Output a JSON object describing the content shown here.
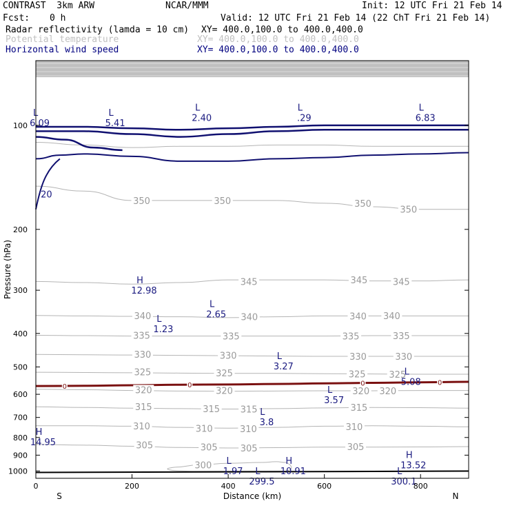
{
  "header": {
    "model": "CONTRAST  3km ARW",
    "org": "NCAR/MMM",
    "init": "Init: 12 UTC Fri 21 Feb 14",
    "fcst_label": "Fcst:",
    "fcst_value": "0 h",
    "valid": "Valid: 12 UTC Fri 21 Feb 14 (22 ChT Fri 21 Feb 14)",
    "fields": [
      {
        "name": "Radar reflectivity (lamda = 10 cm)",
        "xy": "XY= 400.0,100.0 to 400.0,400.0"
      },
      {
        "name": "Potential temperature",
        "xy": "XY= 400.0,100.0 to 400.0,400.0"
      },
      {
        "name": "Horizontal wind speed",
        "xy": "XY= 400.0,100.0 to 400.0,400.0"
      }
    ]
  },
  "colors": {
    "theta": "#b4b4b4",
    "wind": "#101070",
    "freezing": "#7a1010",
    "ground": "#000000",
    "upper_shade": "#c0c0c0"
  },
  "chart_data": {
    "type": "line",
    "title": "",
    "xlabel": "Distance (km)",
    "ylabel": "Pressure (hPa)",
    "xlim": [
      0,
      900
    ],
    "ylim": [
      1050,
      65
    ],
    "y_scale": "log",
    "x_ticks": [
      0,
      200,
      400,
      600,
      800
    ],
    "y_ticks": [
      100,
      200,
      300,
      400,
      500,
      600,
      700,
      800,
      900,
      1000
    ],
    "end_labels": {
      "left": "S",
      "right": "N"
    },
    "potential_temperature": [
      {
        "label": "300",
        "x": [
          290,
          340,
          400,
          470,
          500,
          520
        ],
        "y": [
          975,
          960,
          950,
          945,
          940,
          945
        ]
      },
      {
        "label": "305",
        "x": [
          0,
          100,
          200,
          300,
          400,
          500,
          600,
          700,
          800,
          900
        ],
        "y": [
          838,
          842,
          848,
          855,
          858,
          856,
          853,
          853,
          852,
          850
        ]
      },
      {
        "label": "310",
        "x": [
          0,
          100,
          200,
          300,
          400,
          500,
          600,
          700,
          800,
          900
        ],
        "y": [
          740,
          740,
          742,
          748,
          752,
          748,
          742,
          740,
          742,
          745
        ]
      },
      {
        "label": "315",
        "x": [
          0,
          100,
          200,
          300,
          400,
          500,
          600,
          700,
          800,
          900
        ],
        "y": [
          652,
          655,
          658,
          660,
          662,
          660,
          657,
          655,
          656,
          658
        ]
      },
      {
        "label": "320",
        "x": [
          0,
          100,
          200,
          300,
          400,
          500,
          600,
          700,
          800,
          900
        ],
        "y": [
          580,
          582,
          585,
          587,
          588,
          587,
          586,
          586,
          585,
          585
        ]
      },
      {
        "label": "325",
        "x": [
          0,
          100,
          200,
          300,
          400,
          500,
          600,
          700,
          800,
          900
        ],
        "y": [
          518,
          519,
          520,
          521,
          522,
          522,
          523,
          524,
          525,
          525
        ]
      },
      {
        "label": "330",
        "x": [
          0,
          100,
          200,
          300,
          400,
          500,
          600,
          700,
          800,
          900
        ],
        "y": [
          460,
          461,
          462,
          463,
          464,
          465,
          466,
          466,
          466,
          466
        ]
      },
      {
        "label": "335",
        "x": [
          0,
          100,
          200,
          300,
          400,
          500,
          600,
          700,
          800,
          900
        ],
        "y": [
          405,
          406,
          407,
          407,
          407,
          407,
          407,
          406,
          406,
          406
        ]
      },
      {
        "label": "340",
        "x": [
          0,
          100,
          200,
          300,
          400,
          500,
          600,
          700,
          800,
          900
        ],
        "y": [
          355,
          356,
          357,
          358,
          360,
          358,
          356,
          356,
          356,
          356
        ]
      },
      {
        "label": "345",
        "x": [
          0,
          100,
          200,
          300,
          400,
          500,
          600,
          700,
          800,
          900
        ],
        "y": [
          283,
          285,
          288,
          285,
          280,
          280,
          280,
          282,
          282,
          280
        ]
      },
      {
        "label": "350",
        "x": [
          0,
          100,
          200,
          300,
          400,
          500,
          600,
          700,
          800,
          900
        ],
        "y": [
          150,
          155,
          165,
          165,
          165,
          165,
          168,
          172,
          175,
          175
        ]
      },
      {
        "label": "355",
        "x": [
          0,
          100,
          200,
          300,
          400,
          500,
          600,
          700,
          800,
          900
        ],
        "y": [
          112,
          114,
          116,
          115,
          115,
          114,
          114,
          115,
          115,
          115
        ]
      }
    ],
    "theta_labels": [
      {
        "text": "350",
        "x": 220,
        "p": 165
      },
      {
        "text": "350",
        "x": 388,
        "p": 165
      },
      {
        "text": "350",
        "x": 680,
        "p": 168
      },
      {
        "text": "350",
        "x": 775,
        "p": 175
      },
      {
        "text": "345",
        "x": 443,
        "p": 283
      },
      {
        "text": "345",
        "x": 672,
        "p": 280
      },
      {
        "text": "345",
        "x": 760,
        "p": 283
      },
      {
        "text": "340",
        "x": 222,
        "p": 355
      },
      {
        "text": "340",
        "x": 444,
        "p": 358
      },
      {
        "text": "340",
        "x": 670,
        "p": 356
      },
      {
        "text": "340",
        "x": 740,
        "p": 355
      },
      {
        "text": "335",
        "x": 220,
        "p": 405
      },
      {
        "text": "335",
        "x": 406,
        "p": 407
      },
      {
        "text": "335",
        "x": 655,
        "p": 407
      },
      {
        "text": "335",
        "x": 760,
        "p": 406
      },
      {
        "text": "330",
        "x": 222,
        "p": 460
      },
      {
        "text": "330",
        "x": 400,
        "p": 463
      },
      {
        "text": "330",
        "x": 670,
        "p": 466
      },
      {
        "text": "330",
        "x": 765,
        "p": 466
      },
      {
        "text": "325",
        "x": 222,
        "p": 517
      },
      {
        "text": "325",
        "x": 392,
        "p": 520
      },
      {
        "text": "325",
        "x": 668,
        "p": 524
      },
      {
        "text": "325",
        "x": 752,
        "p": 525
      },
      {
        "text": "320",
        "x": 224,
        "p": 582
      },
      {
        "text": "320",
        "x": 392,
        "p": 585
      },
      {
        "text": "320",
        "x": 676,
        "p": 586
      },
      {
        "text": "320",
        "x": 732,
        "p": 586
      },
      {
        "text": "315",
        "x": 224,
        "p": 652
      },
      {
        "text": "315",
        "x": 365,
        "p": 660
      },
      {
        "text": "315",
        "x": 443,
        "p": 662
      },
      {
        "text": "315",
        "x": 672,
        "p": 655
      },
      {
        "text": "310",
        "x": 220,
        "p": 740
      },
      {
        "text": "310",
        "x": 350,
        "p": 752
      },
      {
        "text": "310",
        "x": 442,
        "p": 755
      },
      {
        "text": "310",
        "x": 662,
        "p": 744
      },
      {
        "text": "305",
        "x": 226,
        "p": 840
      },
      {
        "text": "305",
        "x": 360,
        "p": 852
      },
      {
        "text": "305",
        "x": 443,
        "p": 858
      },
      {
        "text": "305",
        "x": 665,
        "p": 850
      },
      {
        "text": "300",
        "x": 348,
        "p": 960
      }
    ],
    "wind_speed": [
      {
        "label": "20",
        "x": [
          0,
          50,
          100,
          200,
          300,
          400,
          500,
          600,
          700,
          800,
          900
        ],
        "y": [
          125,
          122,
          121,
          123,
          127,
          127,
          125,
          124,
          122,
          121,
          120
        ]
      },
      {
        "label": "",
        "x": [
          0,
          100,
          200,
          300,
          400,
          500,
          600,
          700,
          800,
          900
        ],
        "y": [
          101,
          101,
          102,
          103,
          102,
          101,
          100,
          100,
          100,
          100
        ]
      },
      {
        "label": "",
        "x": [
          0,
          100,
          200,
          300,
          400,
          500,
          600,
          700,
          800,
          900
        ],
        "y": [
          104,
          104,
          106,
          108,
          106,
          104,
          103,
          103,
          103,
          103
        ]
      },
      {
        "label": "",
        "x": [
          0,
          60,
          120,
          180
        ],
        "y": [
          108,
          110,
          116,
          118
        ]
      }
    ],
    "freezing_level": {
      "label": "0",
      "x": [
        0,
        100,
        200,
        300,
        400,
        500,
        600,
        700,
        800,
        900
      ],
      "y": [
        568,
        567,
        565,
        563,
        562,
        560,
        558,
        556,
        554,
        552
      ]
    },
    "freezing_marks": [
      60,
      320,
      680,
      840
    ],
    "ground_pressure": 1010,
    "extrema": [
      {
        "kind": "L",
        "value": "6.09",
        "x": 8,
        "p": 90
      },
      {
        "kind": "L",
        "value": "5.41",
        "x": 165,
        "p": 90
      },
      {
        "kind": "L",
        "value": "2.40",
        "x": 345,
        "p": 87
      },
      {
        "kind": "L",
        "value": ".29",
        "x": 558,
        "p": 87
      },
      {
        "kind": "L",
        "value": "6.83",
        "x": 810,
        "p": 87
      },
      {
        "kind": "H",
        "value": "12.98",
        "x": 225,
        "p": 275
      },
      {
        "kind": "L",
        "value": "2.65",
        "x": 375,
        "p": 322
      },
      {
        "kind": "L",
        "value": "1.23",
        "x": 265,
        "p": 355
      },
      {
        "kind": "L",
        "value": "3.27",
        "x": 515,
        "p": 455
      },
      {
        "kind": "L",
        "value": "5.08",
        "x": 780,
        "p": 505
      },
      {
        "kind": "L",
        "value": "3.57",
        "x": 620,
        "p": 570
      },
      {
        "kind": "L",
        "value": "3.8",
        "x": 480,
        "p": 660
      },
      {
        "kind": "H",
        "value": "14.95",
        "x": 15,
        "p": 755
      },
      {
        "kind": "H",
        "value": "13.52",
        "x": 785,
        "p": 880
      },
      {
        "kind": "L",
        "value": "1.97",
        "x": 410,
        "p": 915
      },
      {
        "kind": "H",
        "value": "10.91",
        "x": 535,
        "p": 915
      },
      {
        "kind": "L",
        "value": "299.5",
        "x": 470,
        "p": 980
      },
      {
        "kind": "L",
        "value": "300.1",
        "x": 765,
        "p": 980
      }
    ]
  }
}
